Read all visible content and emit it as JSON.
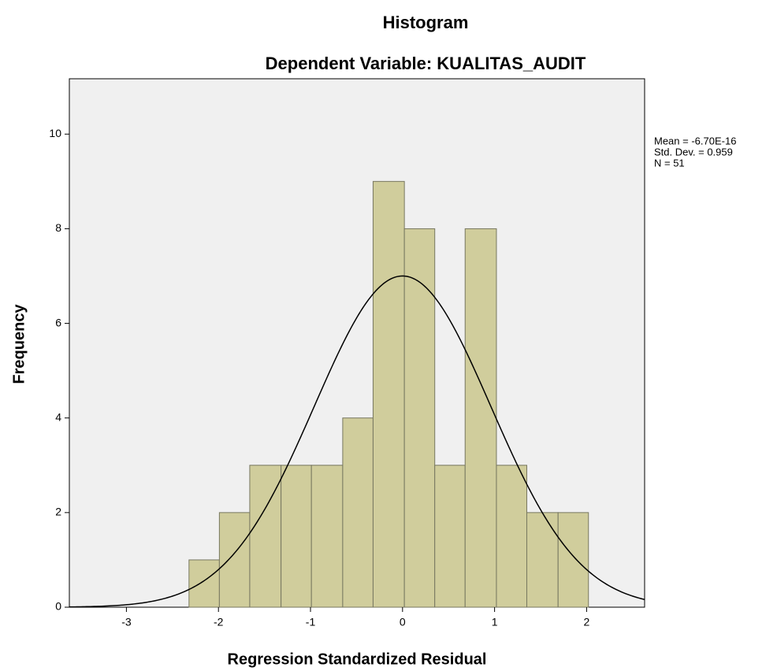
{
  "chart_data": {
    "type": "histogram",
    "title": "Histogram",
    "subtitle": "Dependent Variable: KUALITAS_AUDIT",
    "x_label": "Regression Standardized Residual",
    "y_label": "Frequency",
    "bins": [
      -2.32,
      -1.99,
      -1.66,
      -1.32,
      -0.99,
      -0.65,
      -0.32,
      0.02,
      0.35,
      0.68,
      1.02,
      1.35,
      1.69,
      2.02
    ],
    "values": [
      1,
      2,
      3,
      3,
      3,
      4,
      9,
      8,
      3,
      8,
      3,
      2,
      2
    ],
    "color": "#d0cd9c",
    "edge_color": "#777760",
    "xlim": [
      -3.62,
      2.63
    ],
    "xticks": [
      -3,
      -2,
      -1,
      0,
      1,
      2
    ],
    "ylim": [
      0,
      11.17
    ],
    "yticks": [
      0,
      2,
      4,
      6,
      8,
      10
    ],
    "stats": [
      {
        "value": -6.7e-16,
        "label": "Mean = -6.70E-16"
      },
      {
        "value": 0.959,
        "label": "Std. Dev. = 0.959"
      },
      {
        "value": 51,
        "label": "N = 51"
      }
    ],
    "normal_curve": true
  }
}
